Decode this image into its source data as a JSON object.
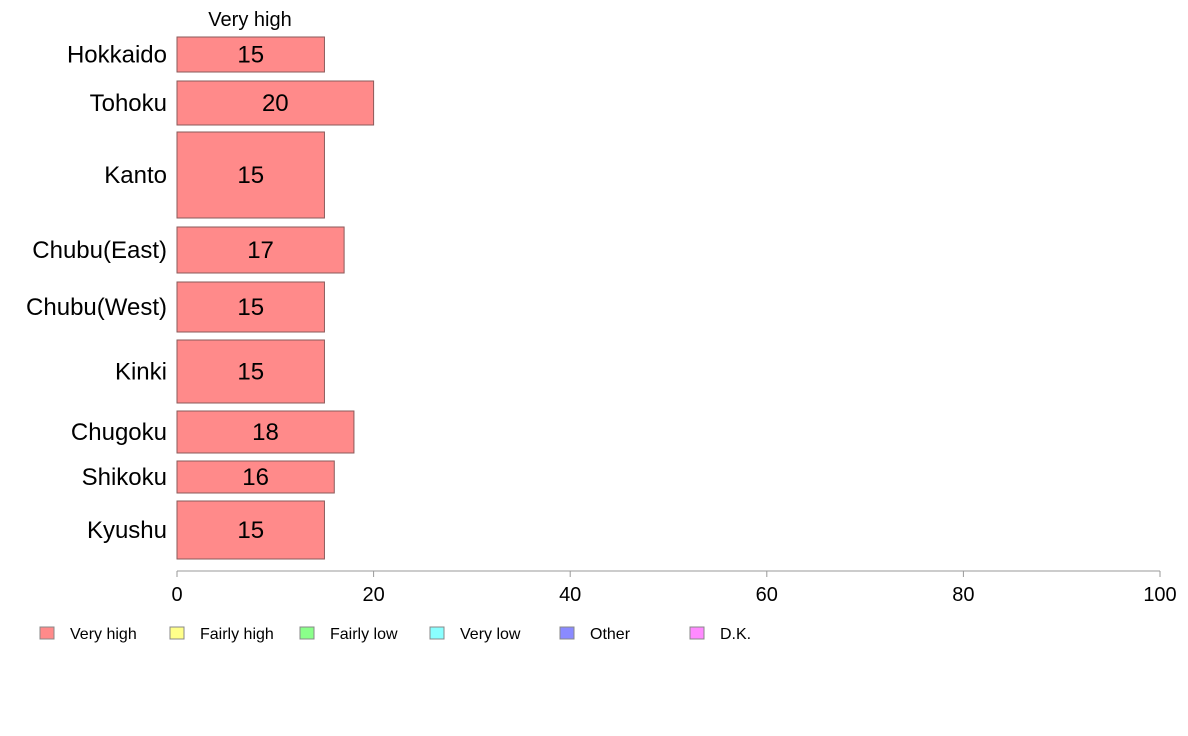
{
  "chart_data": {
    "type": "bar",
    "orientation": "horizontal",
    "stacked": true,
    "categories": [
      "Hokkaido",
      "Tohoku",
      "Kanto",
      "Chubu(East)",
      "Chubu(West)",
      "Kinki",
      "Chugoku",
      "Shikoku",
      "Kyushu"
    ],
    "series": [
      {
        "name": "Very high",
        "color": "#ff8a8a",
        "values": [
          15,
          20,
          15,
          17,
          15,
          15,
          18,
          16,
          15
        ]
      }
    ],
    "value_labels": [
      "15",
      "20",
      "15",
      "17",
      "15",
      "15",
      "18",
      "16",
      "15"
    ],
    "series_header": "Very high",
    "xlim": [
      0,
      100
    ],
    "x_ticks": [
      0,
      20,
      40,
      60,
      80,
      100
    ],
    "x_tick_labels": [
      "0",
      "20",
      "40",
      "60",
      "80",
      "100"
    ],
    "legend": {
      "position": "bottom",
      "entries": [
        {
          "label": "Very high",
          "color": "#ff8a8a"
        },
        {
          "label": "Fairly high",
          "color": "#ffff8a"
        },
        {
          "label": "Fairly low",
          "color": "#8aff8a"
        },
        {
          "label": "Very low",
          "color": "#8affff"
        },
        {
          "label": "Other",
          "color": "#8a8aff"
        },
        {
          "label": "D.K.",
          "color": "#ff8aff"
        }
      ]
    }
  }
}
